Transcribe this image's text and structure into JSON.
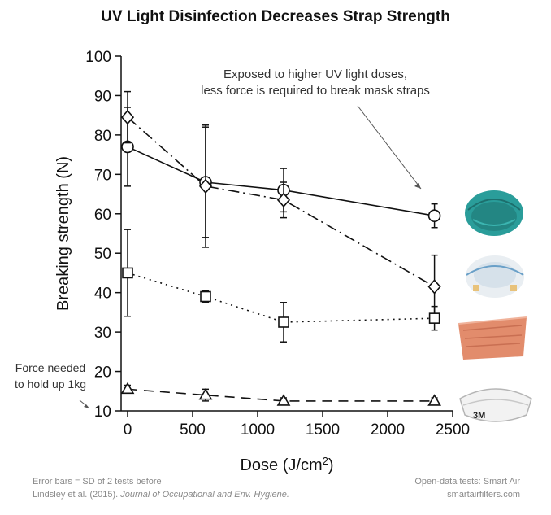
{
  "title": "UV Light Disinfection Decreases Strap Strength",
  "annotations": {
    "uv_line1": "Exposed to higher UV light doses,",
    "uv_line2": "less force is required to break mask straps",
    "force_line1": "Force needed",
    "force_line2": "to hold up 1kg"
  },
  "footer": {
    "error_bars": "Error bars = SD of 2 tests before",
    "citation_authors": "Lindsley et al. (2015). ",
    "citation_journal": "Journal of Occupational and Env. Hygiene.",
    "source": "Open-data tests: Smart Air",
    "website": "smartairfilters.com"
  },
  "masks": [
    {
      "name": "teal-respirator",
      "color": "#2a9d9a"
    },
    {
      "name": "white-respirator",
      "color": "#e9eef2"
    },
    {
      "name": "orange-respirator",
      "color": "#e28c6c"
    },
    {
      "name": "3m-folding-respirator",
      "color": "#f2f2f2",
      "label": "3M"
    }
  ],
  "chart_data": {
    "type": "line",
    "xlabel": "Dose (J/cm",
    "xlabel_sup": "2",
    "xlabel_end": ")",
    "ylabel": "Breaking strength (N)",
    "xlim": [
      -50,
      2500
    ],
    "ylim": [
      10,
      100
    ],
    "xticks": [
      0,
      500,
      1000,
      1500,
      2000,
      2500
    ],
    "yticks": [
      10,
      20,
      30,
      40,
      50,
      60,
      70,
      80,
      90,
      100
    ],
    "grid": false,
    "legend": "none",
    "series": [
      {
        "marker": "circle",
        "dash": "solid",
        "x": [
          0,
          600,
          1200,
          2360
        ],
        "y": [
          77,
          68,
          66,
          59.5
        ],
        "err": [
          10,
          14,
          5.5,
          3
        ]
      },
      {
        "marker": "diamond",
        "dash": "dashdot",
        "x": [
          0,
          600,
          1200,
          2360
        ],
        "y": [
          84.5,
          67,
          63.5,
          41.5
        ],
        "err": [
          6.5,
          15.5,
          4.5,
          8
        ]
      },
      {
        "marker": "square",
        "dash": "dotted",
        "x": [
          0,
          600,
          1200,
          2360
        ],
        "y": [
          45,
          39,
          32.5,
          33.5
        ],
        "err": [
          11,
          1.5,
          5,
          3
        ]
      },
      {
        "marker": "triangle",
        "dash": "dashed",
        "x": [
          0,
          600,
          1200,
          2360
        ],
        "y": [
          15.5,
          14,
          12.5,
          12.5
        ],
        "err": [
          1,
          1.5,
          0.8,
          0.8
        ]
      }
    ]
  }
}
